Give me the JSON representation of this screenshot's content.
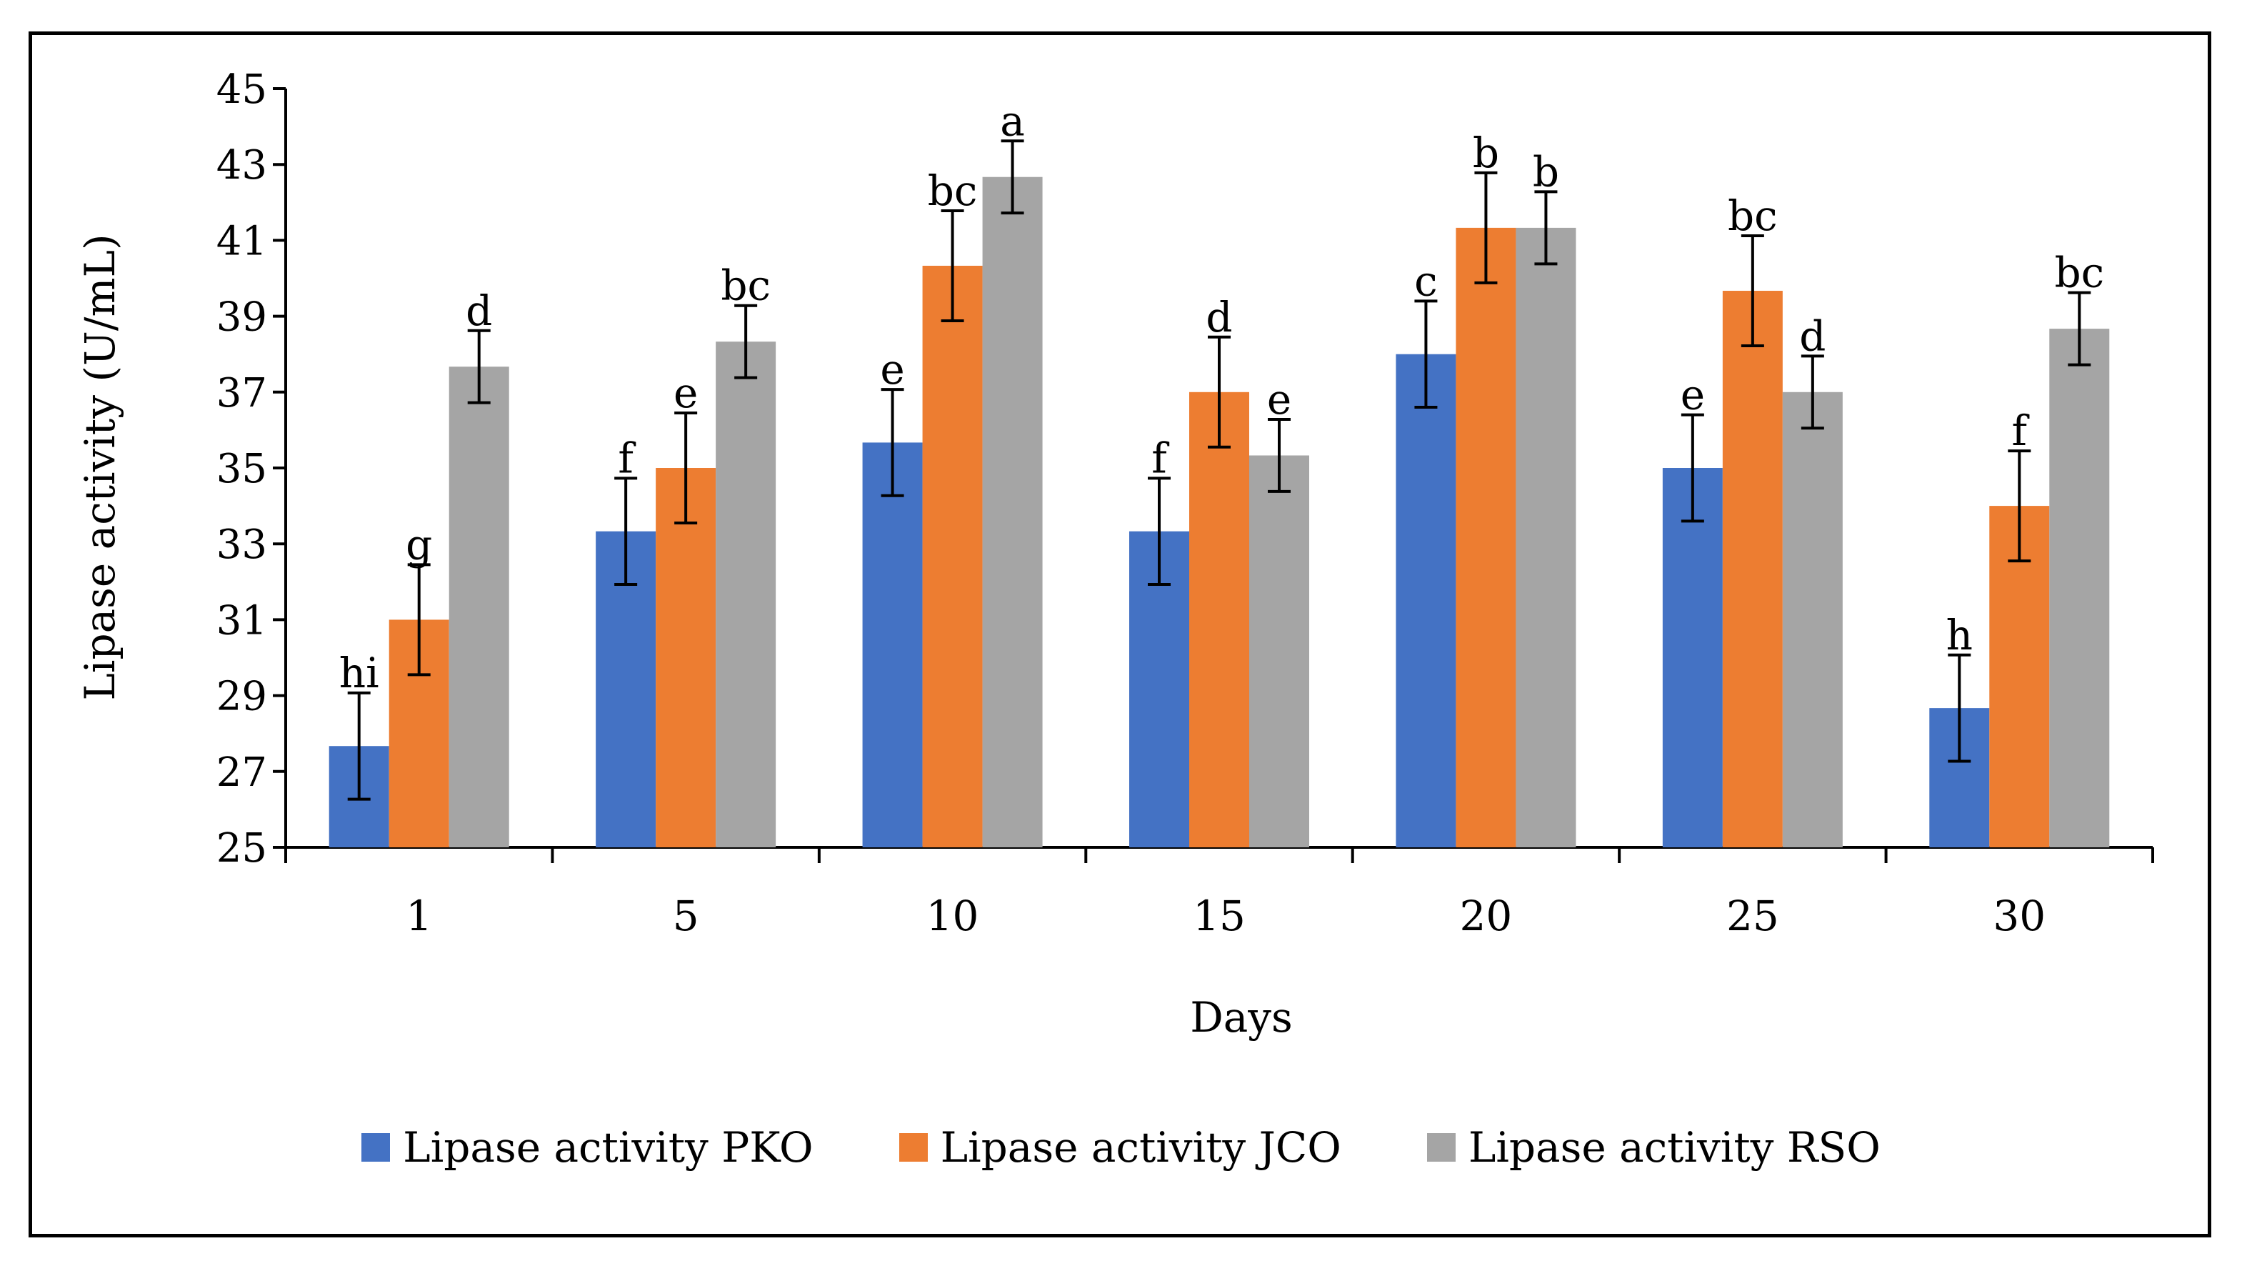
{
  "chart_data": {
    "type": "bar",
    "title": "",
    "xlabel": "Days",
    "ylabel": "Lipase activity (U/mL)",
    "ylim": [
      25,
      45
    ],
    "yticks": [
      25,
      27,
      29,
      31,
      33,
      35,
      37,
      39,
      41,
      43,
      45
    ],
    "categories": [
      "1",
      "5",
      "10",
      "15",
      "20",
      "25",
      "30"
    ],
    "series": [
      {
        "name": "Lipase activity PKO",
        "color": "#4472C4",
        "values": [
          27.67,
          33.33,
          35.67,
          33.33,
          38.0,
          35.0,
          28.67
        ],
        "errors": [
          1.4,
          1.4,
          1.4,
          1.4,
          1.4,
          1.4,
          1.4
        ],
        "letters": [
          "hi",
          "f",
          "e",
          "f",
          "c",
          "e",
          "h"
        ]
      },
      {
        "name": "Lipase activity JCO",
        "color": "#ED7D31",
        "values": [
          31.0,
          35.0,
          40.33,
          37.0,
          41.33,
          39.67,
          34.0
        ],
        "errors": [
          1.45,
          1.45,
          1.45,
          1.45,
          1.45,
          1.45,
          1.45
        ],
        "letters": [
          "g",
          "e",
          "bc",
          "d",
          "b",
          "bc",
          "f"
        ]
      },
      {
        "name": "Lipase activity RSO",
        "color": "#A5A5A5",
        "values": [
          37.67,
          38.33,
          42.67,
          35.33,
          41.33,
          37.0,
          38.67
        ],
        "errors": [
          0.95,
          0.95,
          0.95,
          0.95,
          0.95,
          0.95,
          0.95
        ],
        "letters": [
          "d",
          "bc",
          "a",
          "e",
          "b",
          "d",
          "bc"
        ]
      }
    ],
    "legend_position": "bottom"
  }
}
